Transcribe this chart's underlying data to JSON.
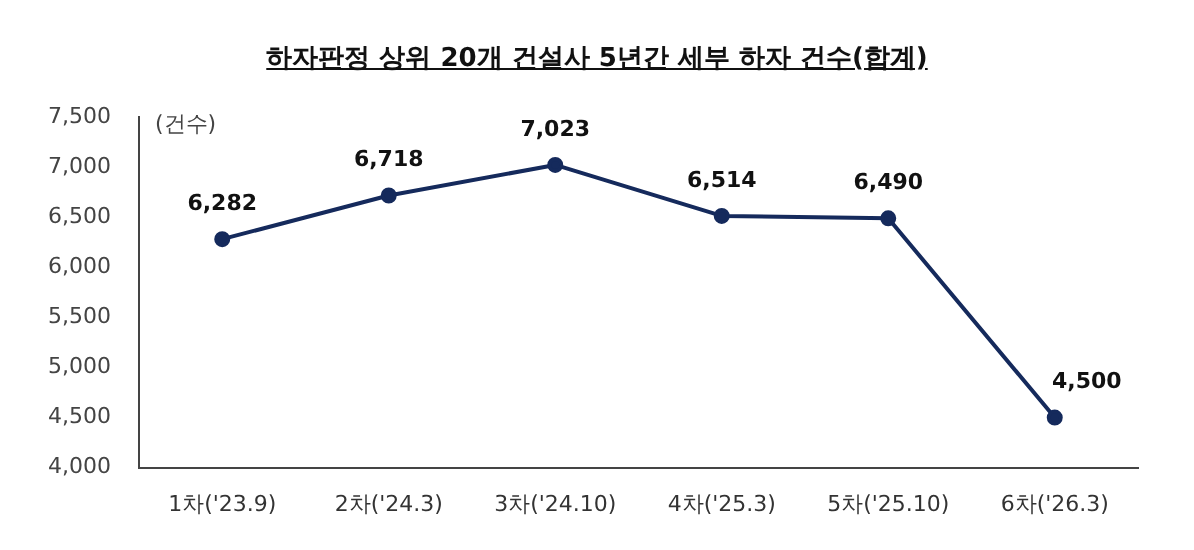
{
  "chart_data": {
    "type": "line",
    "title": "하자판정 상위 20개 건설사 5년간 세부 하자 건수(합계)",
    "ylabel": "(건수)",
    "categories": [
      "1차('23.9)",
      "2차('24.3)",
      "3차('24.10)",
      "4차('25.3)",
      "5차('25.10)",
      "6차('26.3)"
    ],
    "series": [
      {
        "color": "#152a5c",
        "values": [
          6282,
          6718,
          7023,
          6514,
          6490,
          4500
        ],
        "value_labels": [
          "6,282",
          "6,718",
          "7,023",
          "6,514",
          "6,490",
          "4,500"
        ]
      }
    ],
    "ylim": [
      4000,
      7500
    ],
    "yticks": [
      {
        "value": 4000,
        "label": "4,000"
      },
      {
        "value": 4500,
        "label": "4,500"
      },
      {
        "value": 5000,
        "label": "5,000"
      },
      {
        "value": 5500,
        "label": "5,500"
      },
      {
        "value": 6000,
        "label": "6,000"
      },
      {
        "value": 6500,
        "label": "6,500"
      },
      {
        "value": 7000,
        "label": "7,000"
      },
      {
        "value": 7500,
        "label": "7,500"
      }
    ],
    "grid": false,
    "legend": false,
    "marker": "circle",
    "line_style": "solid"
  }
}
